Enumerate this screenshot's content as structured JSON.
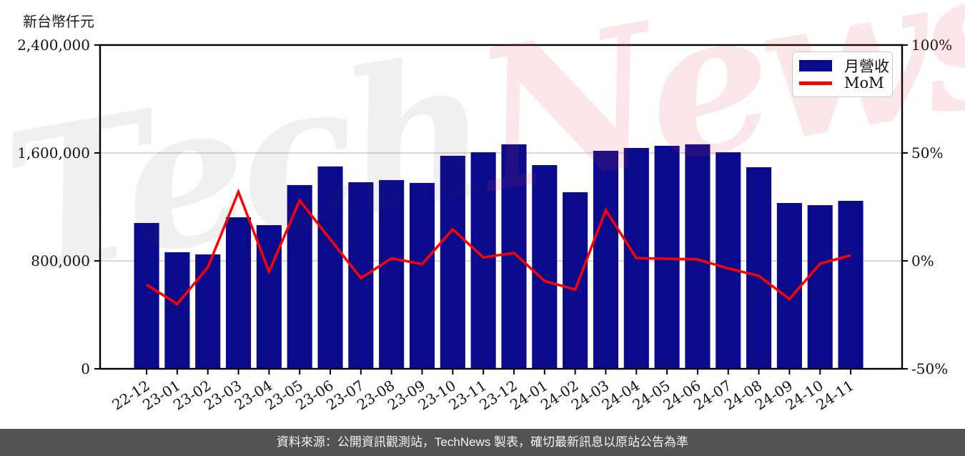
{
  "page": {
    "unit_label": "新台幣仟元",
    "footer_text": "資料來源：公開資訊觀測站，TechNews 製表，確切最新訊息以原站公告為準",
    "watermark": {
      "left": "Tech",
      "right": "News"
    }
  },
  "legend": {
    "revenue_label": "月營收",
    "mom_label": "MoM"
  },
  "colors": {
    "bar": "#0a0a8c",
    "line": "#ff0000",
    "grid": "#cccccc",
    "axis": "#000000",
    "footer_bg": "#535353",
    "watermark_pink": "rgba(225,60,75,0.12)",
    "watermark_gray": "rgba(60,60,60,0.08)"
  },
  "chart_data": {
    "type": "bar",
    "combo": "bar+line",
    "title": "",
    "categories": [
      "22-12",
      "23-01",
      "23-02",
      "23-03",
      "23-04",
      "23-05",
      "23-06",
      "23-07",
      "23-08",
      "23-09",
      "23-10",
      "23-11",
      "23-12",
      "24-01",
      "24-02",
      "24-03",
      "24-04",
      "24-05",
      "24-06",
      "24-07",
      "24-08",
      "24-09",
      "24-10",
      "24-11"
    ],
    "series": [
      {
        "name": "月營收",
        "type": "bar",
        "axis": "left",
        "color": "#0a0a8c",
        "unit": "新台幣仟元",
        "values": [
          1081000,
          864000,
          848000,
          1123000,
          1065000,
          1362000,
          1500000,
          1383000,
          1399000,
          1378000,
          1579000,
          1605000,
          1664000,
          1510000,
          1309000,
          1616000,
          1637000,
          1653000,
          1664000,
          1605000,
          1494000,
          1229000,
          1213000,
          1245000
        ]
      },
      {
        "name": "MoM",
        "type": "line",
        "axis": "right",
        "color": "#ff0000",
        "unit": "%",
        "values": [
          -11,
          -20,
          -3,
          32,
          -5,
          28,
          10,
          -8,
          1.2,
          -1.5,
          14.6,
          1.6,
          3.7,
          -9.3,
          -13.3,
          23.5,
          1.3,
          1.0,
          0.7,
          -3.5,
          -6.9,
          -17.7,
          -1.3,
          2.6
        ]
      }
    ],
    "left_axis": {
      "label": "新台幣仟元",
      "range": [
        0,
        2400000
      ],
      "ticks": [
        0,
        800000,
        1600000,
        2400000
      ],
      "tick_labels": [
        "0",
        "800,000",
        "1,600,000",
        "2,400,000"
      ]
    },
    "right_axis": {
      "label": "%",
      "range": [
        -50,
        100
      ],
      "ticks": [
        -50,
        0,
        50,
        100
      ],
      "tick_labels": [
        "-50%",
        "0%",
        "50%",
        "100%"
      ]
    },
    "grid": "horizontal gridlines at interior left-axis ticks (800,000 / 1,600,000)",
    "legend_position": "top-right",
    "x_tick_rotation_deg": -33
  }
}
